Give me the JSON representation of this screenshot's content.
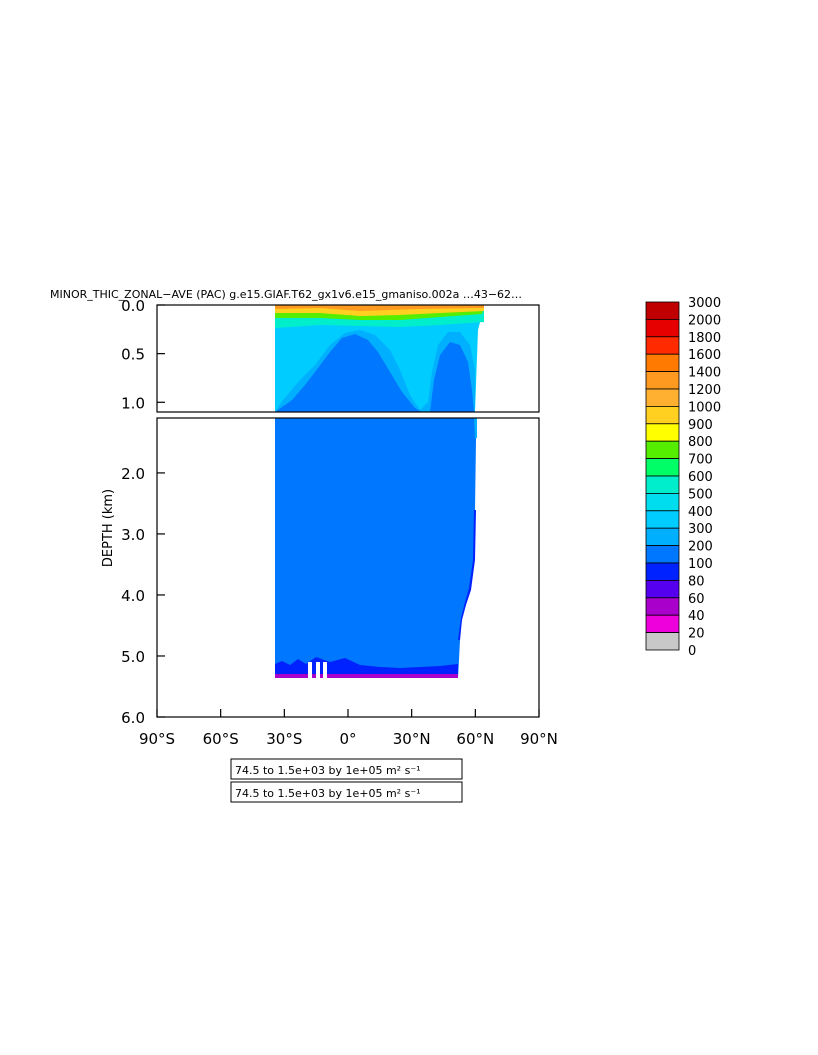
{
  "chart_data": {
    "type": "heatmap",
    "title": "MINOR_THIC_ZONAL−AVE (PAC) g.e15.GIAF.T62_gx1v6.e15_gmaniso.002a  …43−62…",
    "ylabel": "DEPTH (km)",
    "xlabel": "",
    "x_ticks": [
      "90°S",
      "60°S",
      "30°S",
      "0°",
      "30°N",
      "60°N",
      "90°N"
    ],
    "x_tick_values": [
      -90,
      -60,
      -30,
      0,
      30,
      60,
      90
    ],
    "xlim": [
      -90,
      90
    ],
    "y_ticks_upper": [
      "0.0",
      "0.5",
      "1.0"
    ],
    "y_tick_values_upper": [
      0.0,
      0.5,
      1.0
    ],
    "ylim_upper": [
      0.0,
      1.1
    ],
    "y_ticks_lower": [
      "2.0",
      "3.0",
      "4.0",
      "5.0",
      "6.0"
    ],
    "y_tick_values_lower": [
      2.0,
      3.0,
      4.0,
      5.0,
      6.0
    ],
    "ylim_lower": [
      1.1,
      6.0
    ],
    "colorbar": {
      "levels": [
        "3000",
        "2000",
        "1800",
        "1600",
        "1400",
        "1200",
        "1000",
        "900",
        "800",
        "700",
        "600",
        "500",
        "400",
        "300",
        "200",
        "100",
        "80",
        "60",
        "40",
        "20",
        "0"
      ],
      "colors": [
        "#c00000",
        "#e60000",
        "#ff2a00",
        "#ff7a00",
        "#ff9a20",
        "#ffb030",
        "#ffd020",
        "#ffff00",
        "#55ee00",
        "#00ff66",
        "#00eecc",
        "#00ddee",
        "#00ccff",
        "#00b0ff",
        "#0077ff",
        "#0022ff",
        "#5500ee",
        "#aa00cc",
        "#ee00dd",
        "#c8c8c8",
        "#686868"
      ]
    },
    "info_boxes": [
      "74.5 to 1.5e+03 by 1e+05 m² s⁻¹",
      "74.5 to 1.5e+03 by 1e+05 m² s⁻¹"
    ]
  }
}
